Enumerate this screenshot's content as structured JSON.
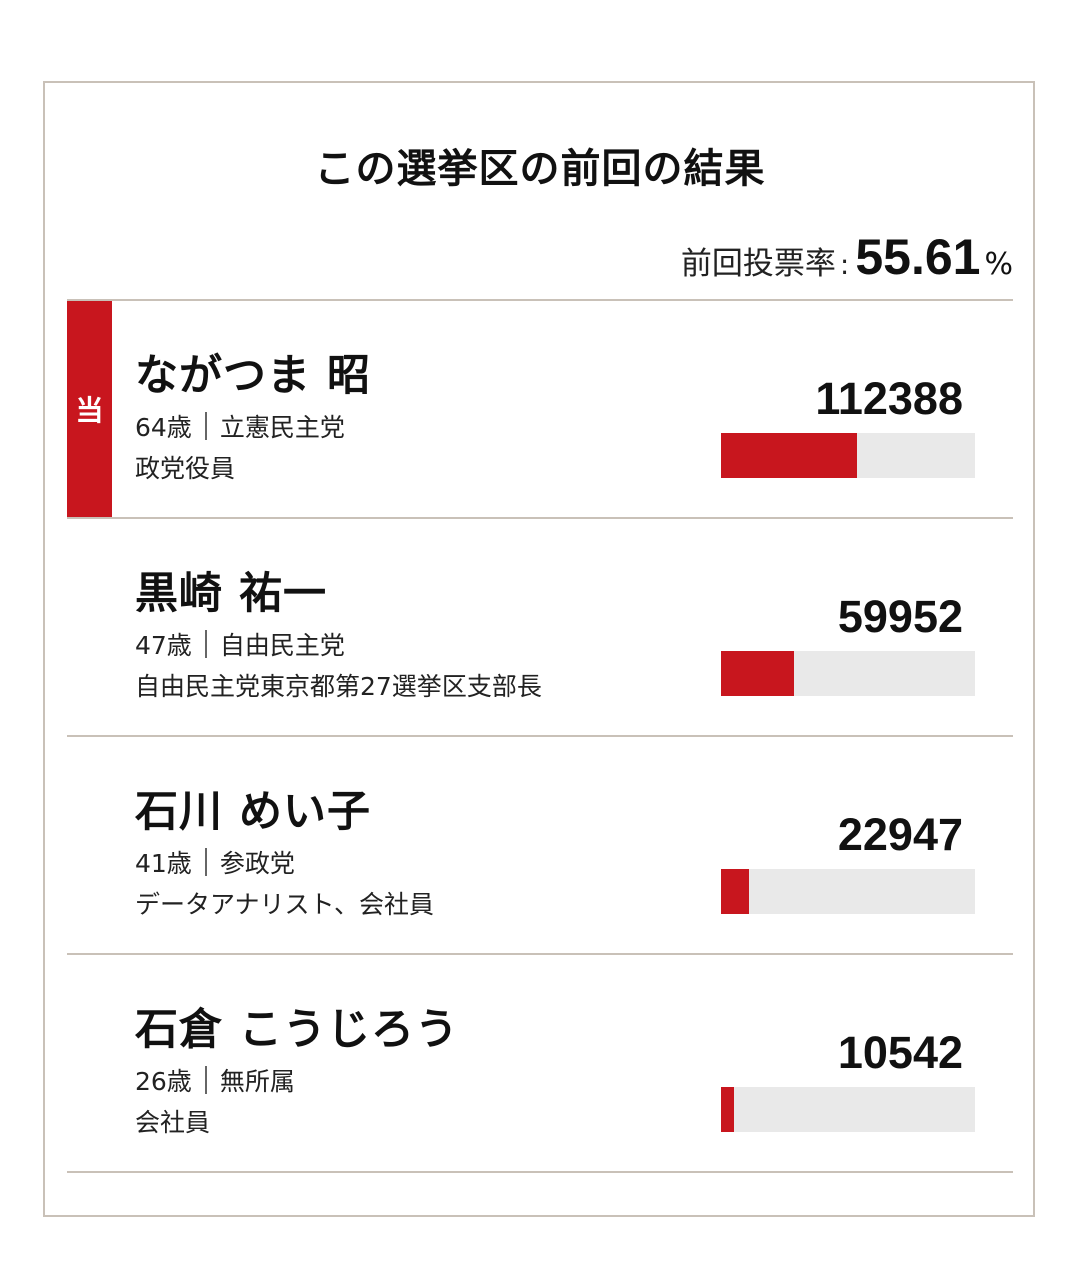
{
  "title": "この選挙区の前回の結果",
  "turnout": {
    "label": "前回投票率",
    "separator": ":",
    "value": "55.61",
    "unit": "%"
  },
  "colors": {
    "accent": "#c8161e",
    "track": "#e9e9e9",
    "border": "#c9c1b8"
  },
  "chart_data": {
    "type": "bar",
    "title": "この選挙区の前回の結果",
    "categories": [
      "ながつま 昭",
      "黒崎 祐一",
      "石川 めい子",
      "石倉 こうじろう"
    ],
    "values": [
      112388,
      59952,
      22947,
      10542
    ],
    "xlabel": "",
    "ylabel": "",
    "ylim": [
      0,
      210000
    ],
    "orientation": "horizontal",
    "grid": false,
    "legend": "none"
  },
  "candidates": [
    {
      "winner": true,
      "winner_label": "当",
      "name": "ながつま 昭",
      "age": "64歳",
      "party": "立憲民主党",
      "job": "政党役員",
      "votes": "112388"
    },
    {
      "winner": false,
      "winner_label": "",
      "name": "黒崎 祐一",
      "age": "47歳",
      "party": "自由民主党",
      "job": "自由民主党東京都第27選挙区支部長",
      "votes": "59952"
    },
    {
      "winner": false,
      "winner_label": "",
      "name": "石川 めい子",
      "age": "41歳",
      "party": "参政党",
      "job": "データアナリスト、会社員",
      "votes": "22947"
    },
    {
      "winner": false,
      "winner_label": "",
      "name": "石倉 こうじろう",
      "age": "26歳",
      "party": "無所属",
      "job": "会社員",
      "votes": "10542"
    }
  ]
}
